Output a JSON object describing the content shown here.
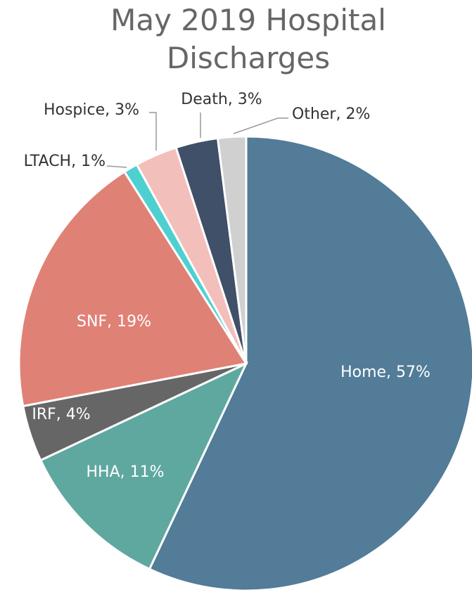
{
  "chart_data": {
    "type": "pie",
    "title": "May 2019 Hospital Discharges",
    "values": [
      57,
      11,
      4,
      19,
      1,
      3,
      3,
      2
    ],
    "value_labels": [
      "Home, 57%",
      "HHA, 11%",
      "IRF, 4%",
      "SNF, 19%",
      "LTACH, 1%",
      "Hospice, 3%",
      "Death, 3%",
      "Other, 2%"
    ],
    "colors": [
      "#527c98",
      "#5fa8a0",
      "#666666",
      "#e08176",
      "#4fd0d0",
      "#f2bfba",
      "#3f5068",
      "#d0d0d0"
    ]
  }
}
